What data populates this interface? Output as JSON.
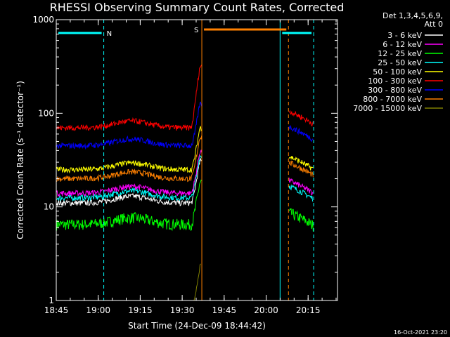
{
  "chart_data": {
    "type": "line",
    "title": "RHESSI Observing Summary Count Rates, Corrected",
    "xlabel": "Start Time (24-Dec-09 18:44:42)",
    "ylabel": "Corrected Count Rate (s⁻¹ detector⁻¹)",
    "yscale": "log",
    "ylim": [
      1,
      1000
    ],
    "xlim_minutes": [
      18.75,
      20.425
    ],
    "x_ticks": [
      {
        "label": "18:45",
        "value": 18.75
      },
      {
        "label": "19:00",
        "value": 19.0
      },
      {
        "label": "19:15",
        "value": 19.25
      },
      {
        "label": "19:30",
        "value": 19.5
      },
      {
        "label": "19:45",
        "value": 19.75
      },
      {
        "label": "20:00",
        "value": 20.0
      },
      {
        "label": "20:15",
        "value": 20.25
      }
    ],
    "y_ticks": [
      {
        "label": "1000",
        "value": 1000
      },
      {
        "label": "100",
        "value": 100
      },
      {
        "label": "10",
        "value": 10
      },
      {
        "label": "1",
        "value": 1
      }
    ],
    "legend_header": [
      "Det 1,3,4,5,6,9,",
      "Att 0"
    ],
    "legend_position": "right",
    "series": [
      {
        "name": "3 - 6 keV",
        "color": "#ffffff",
        "level": 11,
        "post": null
      },
      {
        "name": "6 - 12 keV",
        "color": "#ff00ff",
        "level": 14,
        "post": 15.5
      },
      {
        "name": "12 - 25 keV",
        "color": "#00ff00",
        "level": 6.5,
        "post": 7
      },
      {
        "name": "25 - 50 keV",
        "color": "#00ffff",
        "level": 12.5,
        "post": 13.5
      },
      {
        "name": "50 - 100 keV",
        "color": "#ffff00",
        "level": 25,
        "post": 28
      },
      {
        "name": "100 - 300 keV",
        "color": "#ff0000",
        "level": 70,
        "post": 85
      },
      {
        "name": "300 - 800 keV",
        "color": "#0000ff",
        "level": 45,
        "post": 58
      },
      {
        "name": "800 - 7000 keV",
        "color": "#ff8000",
        "level": 20,
        "post": 24
      },
      {
        "name": "7000 - 15000 keV",
        "color": "#808000",
        "level": null,
        "post": null
      }
    ],
    "flags": [
      {
        "label": "N",
        "color": "#00ffff",
        "start": 18.75,
        "end": 19.033
      },
      {
        "label": "",
        "color": "#00ffff",
        "start": 20.083,
        "end": 20.283
      },
      {
        "label": "S",
        "color": "#ff8000",
        "start": 19.617,
        "end": 20.133
      }
    ],
    "markers": [
      {
        "value": 18.75,
        "color": "#00ffff",
        "style": "solid"
      },
      {
        "value": 19.033,
        "color": "#00ffff",
        "style": "dashed"
      },
      {
        "value": 19.617,
        "color": "#ff8000",
        "style": "solid"
      },
      {
        "value": 20.083,
        "color": "#00ffff",
        "style": "solid"
      },
      {
        "value": 20.133,
        "color": "#ff8000",
        "style": "dashed"
      },
      {
        "value": 20.283,
        "color": "#00ffff",
        "style": "dashed"
      }
    ]
  },
  "timestamp": "16-Oct-2021 23:20"
}
